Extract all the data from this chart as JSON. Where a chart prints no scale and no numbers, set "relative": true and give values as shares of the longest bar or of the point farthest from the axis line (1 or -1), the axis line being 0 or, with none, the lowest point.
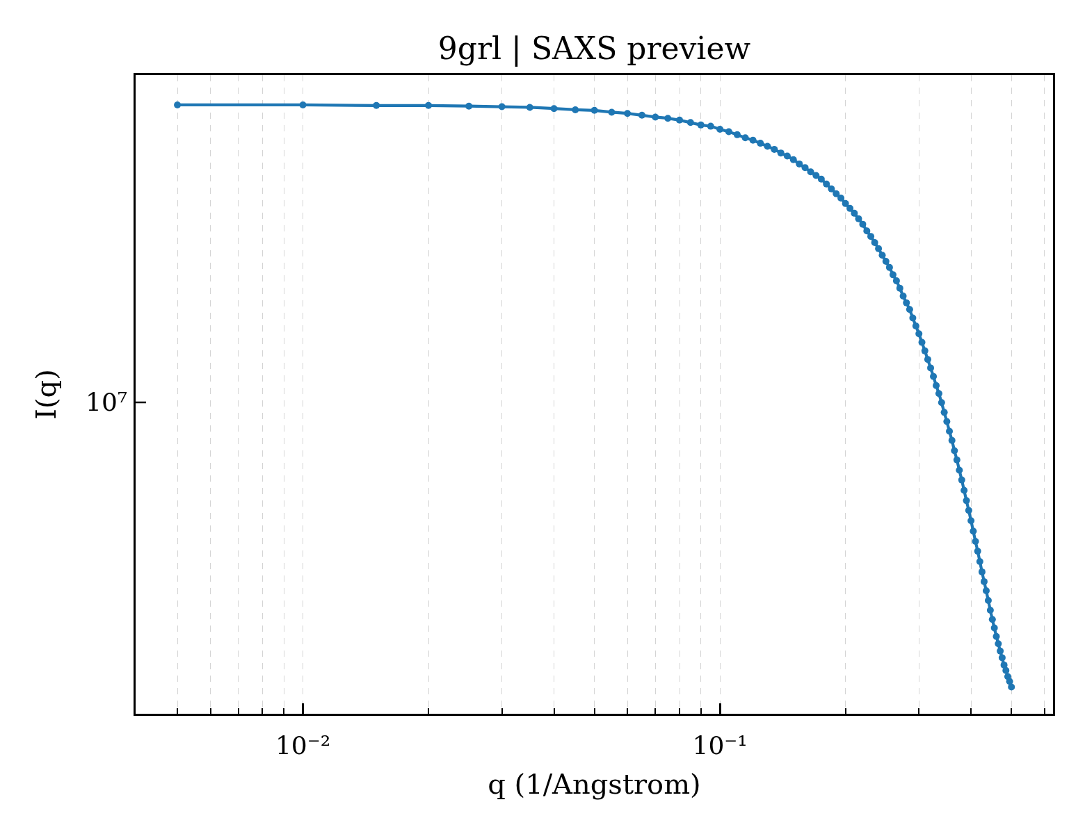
{
  "chart_data": {
    "type": "line",
    "title": "9grl | SAXS preview",
    "xlabel": "q (1/Angstrom)",
    "ylabel": "I(q)",
    "color": "#1f77b4",
    "marker": "circle",
    "line_style": "solid",
    "log": "x",
    "grid": true,
    "relative": true,
    "annotations": [
      "10⁷"
    ],
    "xlim": [
      0.00397,
      0.629
    ],
    "xticks": [
      {
        "value": 0.01,
        "label": "10⁻²"
      },
      {
        "value": 0.1,
        "label": "10⁻¹"
      },
      {
        "value": 0.005,
        "label": null
      },
      {
        "value": 0.006,
        "label": null
      },
      {
        "value": 0.007,
        "label": null
      },
      {
        "value": 0.008,
        "label": null
      },
      {
        "value": 0.009,
        "label": null
      },
      {
        "value": 0.02,
        "label": null
      },
      {
        "value": 0.03,
        "label": null
      },
      {
        "value": 0.04,
        "label": null
      },
      {
        "value": 0.05,
        "label": null
      },
      {
        "value": 0.06,
        "label": null
      },
      {
        "value": 0.07,
        "label": null
      },
      {
        "value": 0.08,
        "label": null
      },
      {
        "value": 0.09,
        "label": null
      },
      {
        "value": 0.2,
        "label": null
      },
      {
        "value": 0.3,
        "label": null
      },
      {
        "value": 0.4,
        "label": null
      },
      {
        "value": 0.5,
        "label": null
      },
      {
        "value": 0.6,
        "label": null
      }
    ],
    "x": [
      0.005,
      0.01,
      0.015,
      0.02,
      0.025,
      0.03,
      0.035,
      0.04,
      0.045,
      0.05,
      0.055,
      0.06,
      0.065,
      0.07,
      0.075,
      0.08,
      0.085,
      0.09,
      0.095,
      0.1,
      0.105,
      0.11,
      0.115,
      0.12,
      0.125,
      0.13,
      0.135,
      0.14,
      0.145,
      0.15,
      0.155,
      0.16,
      0.165,
      0.17,
      0.175,
      0.18,
      0.185,
      0.19,
      0.195,
      0.2,
      0.205,
      0.21,
      0.215,
      0.22,
      0.225,
      0.23,
      0.235,
      0.24,
      0.245,
      0.25,
      0.255,
      0.26,
      0.265,
      0.27,
      0.275,
      0.28,
      0.285,
      0.29,
      0.295,
      0.3,
      0.305,
      0.31,
      0.315,
      0.32,
      0.325,
      0.33,
      0.335,
      0.34,
      0.345,
      0.35,
      0.355,
      0.36,
      0.365,
      0.37,
      0.375,
      0.38,
      0.385,
      0.39,
      0.395,
      0.4,
      0.405,
      0.41,
      0.415,
      0.42,
      0.425,
      0.43,
      0.435,
      0.44,
      0.445,
      0.45,
      0.455,
      0.46,
      0.465,
      0.47,
      0.475,
      0.48,
      0.485,
      0.49,
      0.495,
      0.5
    ],
    "values": [
      1.0,
      1.0,
      0.999,
      0.999,
      0.998,
      0.997,
      0.996,
      0.994,
      0.992,
      0.991,
      0.988,
      0.986,
      0.983,
      0.98,
      0.978,
      0.975,
      0.971,
      0.967,
      0.965,
      0.96,
      0.956,
      0.951,
      0.946,
      0.942,
      0.937,
      0.932,
      0.927,
      0.921,
      0.916,
      0.91,
      0.903,
      0.897,
      0.89,
      0.884,
      0.878,
      0.87,
      0.862,
      0.854,
      0.847,
      0.838,
      0.83,
      0.822,
      0.813,
      0.804,
      0.793,
      0.784,
      0.774,
      0.764,
      0.753,
      0.743,
      0.733,
      0.721,
      0.711,
      0.699,
      0.686,
      0.675,
      0.664,
      0.65,
      0.637,
      0.624,
      0.61,
      0.596,
      0.582,
      0.568,
      0.554,
      0.539,
      0.526,
      0.511,
      0.495,
      0.48,
      0.464,
      0.449,
      0.432,
      0.417,
      0.4,
      0.384,
      0.367,
      0.35,
      0.334,
      0.317,
      0.3,
      0.283,
      0.267,
      0.25,
      0.233,
      0.217,
      0.202,
      0.186,
      0.17,
      0.155,
      0.141,
      0.127,
      0.115,
      0.103,
      0.092,
      0.08,
      0.071,
      0.061,
      0.053,
      0.044
    ]
  }
}
